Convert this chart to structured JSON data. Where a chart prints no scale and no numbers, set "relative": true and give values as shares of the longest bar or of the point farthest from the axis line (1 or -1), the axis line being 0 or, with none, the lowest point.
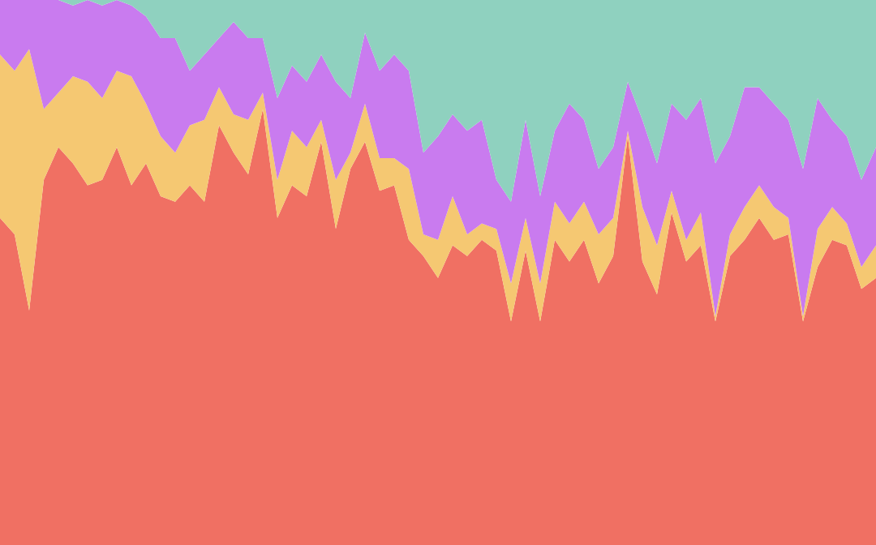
{
  "chart_data": {
    "type": "area",
    "relative": true,
    "stacked": true,
    "categories": [
      null,
      null,
      null,
      null,
      null,
      null,
      null,
      null,
      null,
      null,
      null,
      null,
      null,
      null,
      null,
      null,
      null,
      null,
      null,
      null,
      null,
      null,
      null,
      null,
      null,
      null,
      null,
      null,
      null,
      null,
      null,
      null,
      null,
      null,
      null,
      null,
      null,
      null,
      null,
      null,
      null,
      null,
      null,
      null,
      null,
      null,
      null,
      null,
      null,
      null,
      null,
      null,
      null,
      null,
      null,
      null,
      null,
      null,
      null,
      null,
      null
    ],
    "series": [
      {
        "color": "#f07063",
        "values": [
          0.6,
          0.57,
          0.43,
          0.67,
          0.73,
          0.7,
          0.66,
          0.67,
          0.73,
          0.66,
          0.7,
          0.64,
          0.63,
          0.66,
          0.63,
          0.77,
          0.72,
          0.68,
          0.8,
          0.6,
          0.66,
          0.64,
          0.74,
          0.58,
          0.69,
          0.74,
          0.65,
          0.66,
          0.56,
          0.53,
          0.49,
          0.55,
          0.53,
          0.56,
          0.54,
          0.41,
          0.54,
          0.41,
          0.56,
          0.52,
          0.56,
          0.48,
          0.53,
          0.75,
          0.52,
          0.46,
          0.61,
          0.52,
          0.55,
          0.41,
          0.53,
          0.56,
          0.6,
          0.56,
          0.57,
          0.41,
          0.51,
          0.56,
          0.55,
          0.47,
          0.49
        ]
      },
      {
        "color": "#f5c872",
        "values": [
          0.3,
          0.3,
          0.48,
          0.13,
          0.1,
          0.16,
          0.19,
          0.15,
          0.14,
          0.2,
          0.11,
          0.11,
          0.09,
          0.11,
          0.15,
          0.07,
          0.07,
          0.1,
          0.03,
          0.07,
          0.1,
          0.09,
          0.04,
          0.09,
          0.03,
          0.07,
          0.06,
          0.05,
          0.13,
          0.04,
          0.07,
          0.09,
          0.04,
          0.03,
          0.04,
          0.07,
          0.06,
          0.07,
          0.07,
          0.07,
          0.07,
          0.09,
          0.07,
          0.01,
          0.1,
          0.09,
          0.04,
          0.04,
          0.06,
          0.01,
          0.04,
          0.06,
          0.06,
          0.06,
          0.03,
          0.01,
          0.07,
          0.06,
          0.04,
          0.04,
          0.06
        ]
      },
      {
        "color": "#c97bef",
        "values": [
          0.1,
          0.13,
          0.09,
          0.2,
          0.17,
          0.13,
          0.15,
          0.17,
          0.13,
          0.13,
          0.16,
          0.18,
          0.21,
          0.1,
          0.12,
          0.09,
          0.17,
          0.15,
          0.1,
          0.15,
          0.12,
          0.12,
          0.12,
          0.18,
          0.1,
          0.13,
          0.16,
          0.19,
          0.18,
          0.15,
          0.19,
          0.15,
          0.19,
          0.19,
          0.09,
          0.15,
          0.18,
          0.16,
          0.13,
          0.22,
          0.15,
          0.12,
          0.13,
          0.09,
          0.16,
          0.15,
          0.16,
          0.22,
          0.21,
          0.28,
          0.18,
          0.22,
          0.18,
          0.19,
          0.18,
          0.27,
          0.24,
          0.16,
          0.16,
          0.16,
          0.18
        ]
      },
      {
        "color": "#8fd1bf",
        "values": [
          0,
          0,
          0,
          0,
          0,
          0.01,
          0,
          0.01,
          0,
          0.01,
          0.03,
          0.07,
          0.07,
          0.13,
          0.1,
          0.07,
          0.04,
          0.07,
          0.07,
          0.18,
          0.12,
          0.15,
          0.1,
          0.15,
          0.18,
          0.06,
          0.13,
          0.1,
          0.13,
          0.28,
          0.25,
          0.21,
          0.24,
          0.22,
          0.33,
          0.37,
          0.22,
          0.36,
          0.24,
          0.19,
          0.22,
          0.31,
          0.27,
          0.15,
          0.22,
          0.3,
          0.19,
          0.22,
          0.18,
          0.3,
          0.25,
          0.16,
          0.16,
          0.19,
          0.22,
          0.31,
          0.18,
          0.22,
          0.25,
          0.33,
          0.27
        ]
      }
    ]
  }
}
